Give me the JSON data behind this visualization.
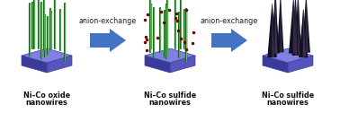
{
  "platform_top_color": "#8080e0",
  "platform_right_color": "#5555bb",
  "platform_left_color": "#3a3a99",
  "platform_edge_color": "#4040aa",
  "wire_green_outer": "#1a6a1a",
  "wire_green_inner": "#66cc66",
  "wire_dark_outer": "#111122",
  "wire_dark_mid": "#443355",
  "dot_color": "#770000",
  "arrow_color": "#4472c4",
  "text_color": "#111111",
  "label1_line1": "Ni–Co oxide",
  "label1_line2": "nanowires",
  "label2_line1": "Ni–Co sulfide",
  "label2_line2": "nanowires",
  "label3_line1": "Ni–Co sulfide",
  "label3_line2": "nanowires",
  "arrow_text": "anion-exchange",
  "label_fontsize": 5.8,
  "arrow_fontsize": 5.8,
  "fig_width": 3.78,
  "fig_height": 1.26
}
